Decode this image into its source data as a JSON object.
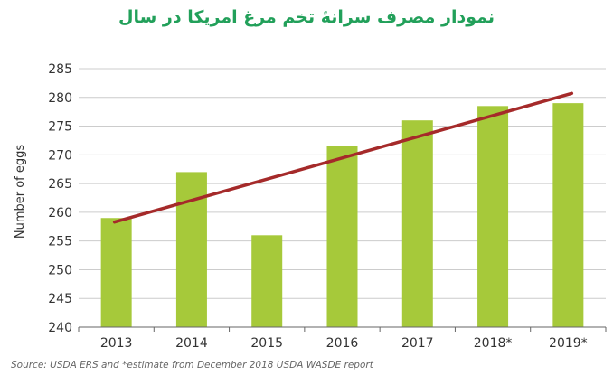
{
  "colors": {
    "bar": "#a6c93a",
    "trend": "#a52a2a",
    "title": "#22a05a",
    "grid": "#cccccc",
    "axis": "#666666"
  },
  "chart_data": {
    "type": "bar",
    "title": "نمودار مصرف سرانهٔ تخم مرغ امریکا در سال",
    "xlabel": "",
    "ylabel": "Number of eggs",
    "categories": [
      "2013",
      "2014",
      "2015",
      "2016",
      "2017",
      "2018*",
      "2019*"
    ],
    "values": [
      259,
      267,
      256,
      271.5,
      276,
      278.5,
      279
    ],
    "ylim": [
      240,
      285
    ],
    "yticks": [
      240,
      245,
      250,
      255,
      260,
      265,
      270,
      275,
      280,
      285
    ],
    "grid": true,
    "trendline": {
      "start": 258.3,
      "end": 280.7
    },
    "source": "Source: USDA ERS and *estimate from December 2018 USDA WASDE report"
  }
}
